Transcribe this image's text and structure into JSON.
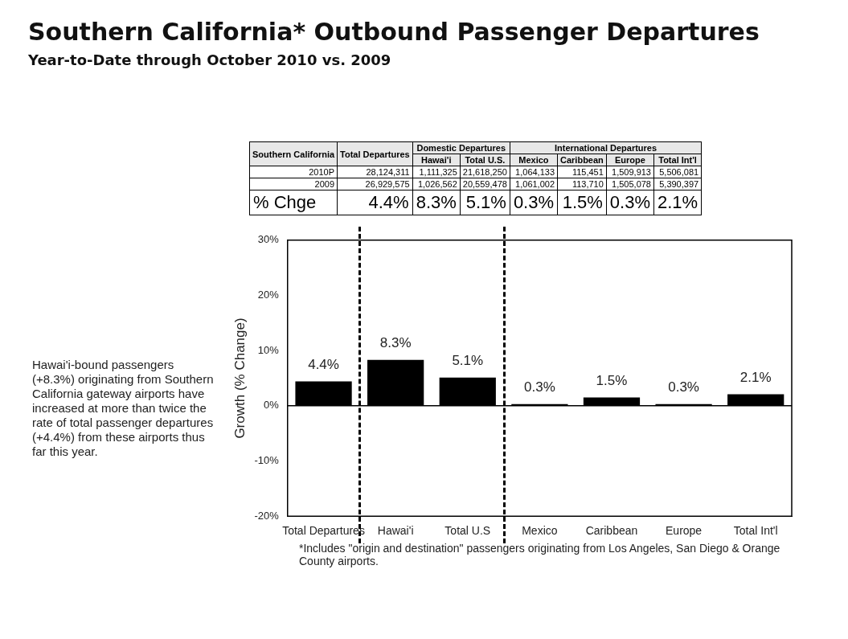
{
  "chart_data": {
    "type": "bar",
    "title": "Southern California* Outbound Passenger Departures",
    "subtitle": "Year-to-Date through October 2010 vs. 2009",
    "categories": [
      "Total Departures",
      "Hawai'i",
      "Total U.S",
      "Mexico",
      "Caribbean",
      "Europe",
      "Total Int'l"
    ],
    "values": [
      4.4,
      8.3,
      5.1,
      0.3,
      1.5,
      0.3,
      2.1
    ],
    "value_labels": [
      "4.4%",
      "8.3%",
      "5.1%",
      "0.3%",
      "1.5%",
      "0.3%",
      "2.1%"
    ],
    "color": "#000000",
    "ylabel": "Growth (% Change)",
    "ylim": [
      -20,
      30
    ],
    "yticks": [
      {
        "value": -20,
        "label": "-20%"
      },
      {
        "value": -10,
        "label": "-10%"
      },
      {
        "value": 0,
        "label": "0%"
      },
      {
        "value": 10,
        "label": "10%"
      },
      {
        "value": 20,
        "label": "20%"
      },
      {
        "value": 30,
        "label": "30%"
      }
    ],
    "grid": false,
    "legend": false,
    "annotations": [
      "Hawai'i-bound passengers (+8.3%) originating from Southern California gateway airports have increased at more than twice the rate of total passenger departures (+4.4%) from these airports thus far this year.",
      "*Includes \"origin and destination\" passengers originating from Los Angeles, San Diego & Orange County airports.",
      "Southern California",
      "Total Departures",
      "Domestic Departures",
      "International Departures",
      "Hawai'i",
      "Total U.S.",
      "Mexico",
      "Caribbean",
      "Europe",
      "Total Int'l",
      "2010P",
      "28,124,311",
      "1,111,325",
      "21,618,250",
      "1,064,133",
      "115,451",
      "1,509,913",
      "5,506,081",
      "2009",
      "26,929,575",
      "1,026,562",
      "20,559,478",
      "1,061,002",
      "113,710",
      "1,505,078",
      "5,390,397",
      "% Chge"
    ]
  }
}
